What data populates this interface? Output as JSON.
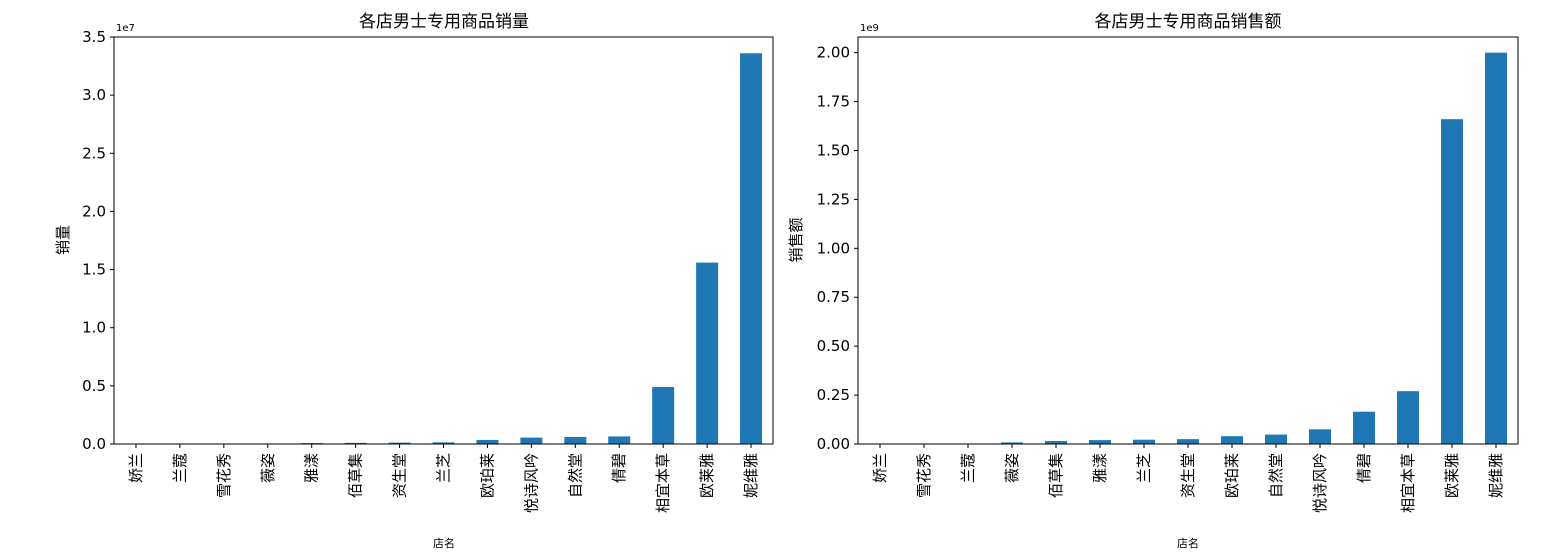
{
  "chart_data": [
    {
      "type": "bar",
      "title": "各店男士专用商品销量",
      "xlabel": "店名",
      "ylabel": "销量",
      "exponent_label": "1e7",
      "scale": 10000000,
      "ylim": [
        0,
        3.5
      ],
      "yticks": [
        0.0,
        0.5,
        1.0,
        1.5,
        2.0,
        2.5,
        3.0,
        3.5
      ],
      "ytick_labels": [
        "0.0",
        "0.5",
        "1.0",
        "1.5",
        "2.0",
        "2.5",
        "3.0",
        "3.5"
      ],
      "color": "#1f77b4",
      "grid": false,
      "categories": [
        "娇兰",
        "兰蔻",
        "雪花秀",
        "薇姿",
        "雅漾",
        "佰草集",
        "资生堂",
        "兰芝",
        "欧珀莱",
        "悦诗风吟",
        "自然堂",
        "倩碧",
        "相宜本草",
        "欧莱雅",
        "妮维雅"
      ],
      "values": [
        0.0,
        0.0,
        0.0,
        0.0,
        0.008,
        0.01,
        0.012,
        0.014,
        0.035,
        0.055,
        0.06,
        0.065,
        0.49,
        1.56,
        3.36
      ]
    },
    {
      "type": "bar",
      "title": "各店男士专用商品销售额",
      "xlabel": "店名",
      "ylabel": "销售额",
      "exponent_label": "1e9",
      "scale": 1000000000,
      "ylim": [
        0,
        2.08
      ],
      "yticks": [
        0.0,
        0.25,
        0.5,
        0.75,
        1.0,
        1.25,
        1.5,
        1.75,
        2.0
      ],
      "ytick_labels": [
        "0.00",
        "0.25",
        "0.50",
        "0.75",
        "1.00",
        "1.25",
        "1.50",
        "1.75",
        "2.00"
      ],
      "color": "#1f77b4",
      "grid": false,
      "categories": [
        "娇兰",
        "雪花秀",
        "兰蔻",
        "薇姿",
        "佰草集",
        "雅漾",
        "兰芝",
        "资生堂",
        "欧珀莱",
        "自然堂",
        "悦诗风吟",
        "倩碧",
        "相宜本草",
        "欧莱雅",
        "妮维雅"
      ],
      "values": [
        0.0,
        0.0,
        0.0,
        0.008,
        0.015,
        0.02,
        0.022,
        0.025,
        0.04,
        0.048,
        0.075,
        0.165,
        0.27,
        1.66,
        2.0
      ]
    }
  ]
}
